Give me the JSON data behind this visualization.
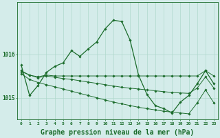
{
  "background_color": "#d4ecea",
  "grid_color": "#b0d8cc",
  "line_color": "#1a6b2a",
  "title": "Graphe pression niveau de la mer (hPa)",
  "title_fontsize": 7,
  "xlim": [
    -0.5,
    23.5
  ],
  "ylim": [
    1014.5,
    1017.2
  ],
  "yticks": [
    1015,
    1016
  ],
  "xticks": [
    0,
    1,
    2,
    3,
    4,
    5,
    6,
    7,
    8,
    9,
    10,
    11,
    12,
    13,
    14,
    15,
    16,
    17,
    18,
    19,
    20,
    21,
    22,
    23
  ],
  "s1_y": [
    1015.75,
    1015.05,
    1015.28,
    1015.58,
    1015.72,
    1015.8,
    1016.08,
    1015.95,
    1016.12,
    1016.28,
    1016.58,
    1016.78,
    1016.75,
    1016.32,
    1015.52,
    1015.08,
    1014.82,
    1014.75,
    1014.65,
    1014.9,
    1015.05,
    1015.32,
    1015.62,
    1015.32
  ],
  "s2_y": [
    1015.62,
    1015.52,
    1015.48,
    1015.52,
    1015.5,
    1015.5,
    1015.5,
    1015.5,
    1015.5,
    1015.5,
    1015.5,
    1015.5,
    1015.5,
    1015.5,
    1015.5,
    1015.5,
    1015.5,
    1015.5,
    1015.5,
    1015.5,
    1015.5,
    1015.5,
    1015.62,
    1015.5
  ],
  "s3_y": [
    1015.6,
    1015.52,
    1015.46,
    1015.5,
    1015.47,
    1015.44,
    1015.42,
    1015.39,
    1015.36,
    1015.33,
    1015.3,
    1015.27,
    1015.24,
    1015.22,
    1015.2,
    1015.18,
    1015.16,
    1015.14,
    1015.12,
    1015.11,
    1015.1,
    1015.22,
    1015.48,
    1015.22
  ],
  "s4_y": [
    1015.55,
    1015.42,
    1015.35,
    1015.3,
    1015.25,
    1015.2,
    1015.15,
    1015.1,
    1015.05,
    1015.0,
    1014.95,
    1014.9,
    1014.86,
    1014.82,
    1014.78,
    1014.75,
    1014.72,
    1014.69,
    1014.67,
    1014.65,
    1014.63,
    1014.88,
    1015.18,
    1014.88
  ],
  "marker": "D",
  "markersize": 1.8,
  "linewidth": 0.9
}
